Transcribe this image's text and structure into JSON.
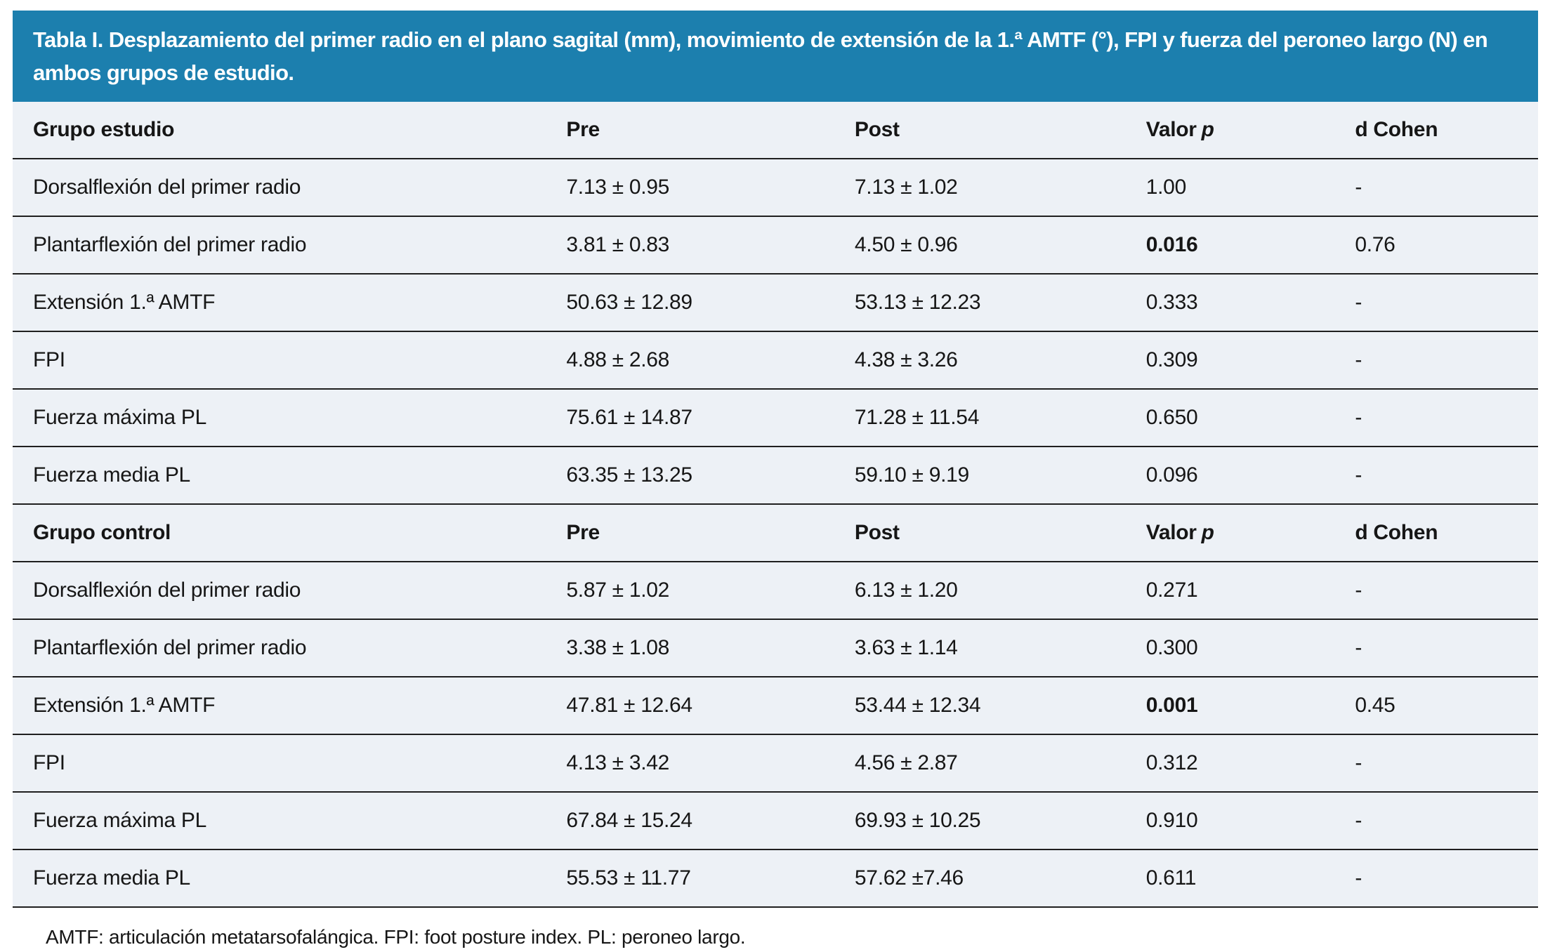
{
  "title": "Tabla I. Desplazamiento del primer radio en el plano sagital (mm), movimiento de extensión de la 1.ª AMTF (°), FPI y fuerza del peroneo largo (N) en ambos grupos de estudio.",
  "footnote": "AMTF: articulación metatarsofalángica. FPI: foot posture index. PL: peroneo largo.",
  "colors": {
    "title_bar_bg": "#1c7fae",
    "title_text": "#ffffff",
    "row_bg": "#edf1f6",
    "divider_line": "#1f1f1f",
    "body_text": "#161616",
    "page_bg": "#ffffff"
  },
  "columns": {
    "pre": "Pre",
    "post": "Post",
    "valor": "Valor",
    "p": "p",
    "d_cohen": "d Cohen"
  },
  "sections": [
    {
      "group_label": "Grupo estudio",
      "rows": [
        {
          "label": "Dorsalflexión del primer radio",
          "pre": "7.13 ± 0.95",
          "post": "7.13 ± 1.02",
          "p": "1.00",
          "significant": false,
          "d": "-"
        },
        {
          "label": "Plantarflexión del primer radio",
          "pre": "3.81 ± 0.83",
          "post": "4.50 ± 0.96",
          "p": "0.016",
          "significant": true,
          "d": "0.76"
        },
        {
          "label": "Extensión 1.ª AMTF",
          "pre": "50.63 ± 12.89",
          "post": "53.13 ± 12.23",
          "p": "0.333",
          "significant": false,
          "d": "-"
        },
        {
          "label": "FPI",
          "pre": "4.88 ± 2.68",
          "post": "4.38 ± 3.26",
          "p": "0.309",
          "significant": false,
          "d": "-"
        },
        {
          "label": "Fuerza máxima PL",
          "pre": "75.61 ± 14.87",
          "post": "71.28 ± 11.54",
          "p": "0.650",
          "significant": false,
          "d": "-"
        },
        {
          "label": "Fuerza media PL",
          "pre": "63.35 ± 13.25",
          "post": "59.10 ± 9.19",
          "p": "0.096",
          "significant": false,
          "d": "-"
        }
      ]
    },
    {
      "group_label": "Grupo control",
      "rows": [
        {
          "label": "Dorsalflexión del primer radio",
          "pre": "5.87 ± 1.02",
          "post": "6.13 ± 1.20",
          "p": "0.271",
          "significant": false,
          "d": "-"
        },
        {
          "label": "Plantarflexión del primer radio",
          "pre": "3.38 ± 1.08",
          "post": "3.63 ± 1.14",
          "p": "0.300",
          "significant": false,
          "d": "-"
        },
        {
          "label": "Extensión 1.ª AMTF",
          "pre": "47.81 ± 12.64",
          "post": "53.44 ± 12.34",
          "p": "0.001",
          "significant": true,
          "d": "0.45"
        },
        {
          "label": "FPI",
          "pre": "4.13 ± 3.42",
          "post": "4.56 ± 2.87",
          "p": "0.312",
          "significant": false,
          "d": "-"
        },
        {
          "label": "Fuerza máxima PL",
          "pre": "67.84 ± 15.24",
          "post": "69.93 ± 10.25",
          "p": "0.910",
          "significant": false,
          "d": "-"
        },
        {
          "label": "Fuerza media PL",
          "pre": "55.53 ± 11.77",
          "post": "57.62 ±7.46",
          "p": "0.611",
          "significant": false,
          "d": "-"
        }
      ]
    }
  ]
}
